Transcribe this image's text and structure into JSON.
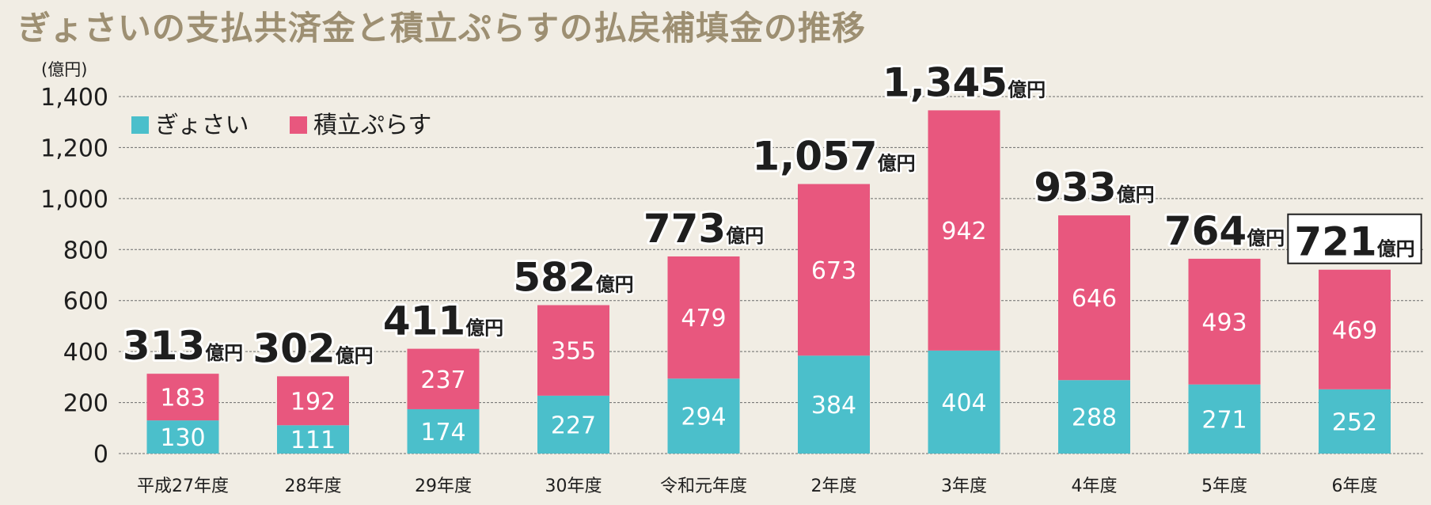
{
  "title": "ぎょさいの支払共済金と積立ぷらすの払戻補填金の推移",
  "chart_data": {
    "type": "bar",
    "stacked": true,
    "unit": "(億円)",
    "total_unit": "億円",
    "categories": [
      "平成27年度",
      "28年度",
      "29年度",
      "30年度",
      "令和元年度",
      "2年度",
      "3年度",
      "4年度",
      "5年度",
      "6年度"
    ],
    "series": [
      {
        "name": "ぎょさい",
        "color": "#4bbfcb",
        "values": [
          130,
          111,
          174,
          227,
          294,
          384,
          404,
          288,
          271,
          252
        ]
      },
      {
        "name": "積立ぷらす",
        "color": "#e8577e",
        "values": [
          183,
          192,
          237,
          355,
          479,
          673,
          942,
          646,
          493,
          469
        ]
      }
    ],
    "totals": [
      "313",
      "302",
      "411",
      "582",
      "773",
      "1,057",
      "1,345",
      "933",
      "764",
      "721"
    ],
    "highlighted_total_index": 9,
    "ylim": [
      0,
      1400
    ],
    "yticks": [
      0,
      200,
      400,
      600,
      800,
      1000,
      1200,
      1400
    ],
    "ytick_labels": [
      "0",
      "200",
      "400",
      "600",
      "800",
      "1,000",
      "1,200",
      "1,400"
    ],
    "grid": true,
    "grid_style": "dashed",
    "legend_position": "top-left"
  }
}
